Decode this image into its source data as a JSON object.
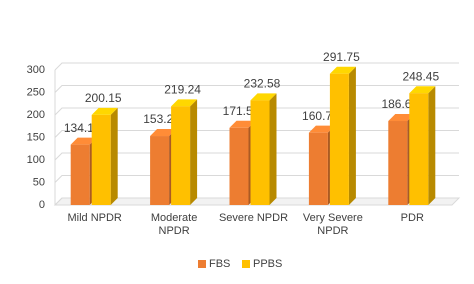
{
  "chart_data": {
    "type": "bar",
    "categories": [
      "Mild NPDR",
      "Moderate NPDR",
      "Severe NPDR",
      "Very Severe NPDR",
      "PDR"
    ],
    "series": [
      {
        "name": "FBS",
        "color": "#ed7d31",
        "values": [
          134.15,
          153.24,
          171.58,
          160.75,
          186.64
        ]
      },
      {
        "name": "PPBS",
        "color": "#ffc000",
        "values": [
          200.15,
          219.24,
          232.58,
          291.75,
          248.45
        ]
      }
    ],
    "ylim": [
      0,
      300
    ],
    "yticks": [
      0,
      50,
      100,
      150,
      200,
      250,
      300
    ],
    "grid": true
  }
}
